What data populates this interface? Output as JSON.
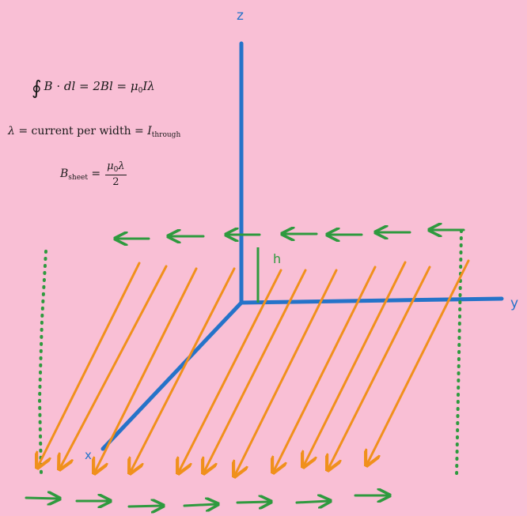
{
  "equations": {
    "line1": {
      "oint": "∮",
      "lhs_B": "B",
      "dot": " · ",
      "dl": "dl",
      "eq1": " = ",
      "twoBl": "2Bl",
      "eq2": " = ",
      "mu": "μ",
      "mu_sub": "0",
      "I": "I",
      "lambda": "λ"
    },
    "line2": {
      "lambda": "λ",
      "text": " = current per width = ",
      "I": "I",
      "I_sub": "through"
    },
    "line3": {
      "B": "B",
      "B_sub": "sheet",
      "eq": " = ",
      "num_mu": "μ",
      "num_sub": "0",
      "num_lambda": "λ",
      "den": "2"
    }
  },
  "axes": {
    "z_label": "z",
    "y_label": "y",
    "x_label": "x",
    "color": "#2573c9"
  },
  "height_label": "h",
  "colors": {
    "background": "#f9bfd5",
    "current_arrows": "#f0901c",
    "field_arrows": "#2e9a3e",
    "axes": "#2573c9"
  },
  "icons": [
    "current-arrow-icon",
    "field-arrow-icon",
    "dotted-loop-icon"
  ]
}
